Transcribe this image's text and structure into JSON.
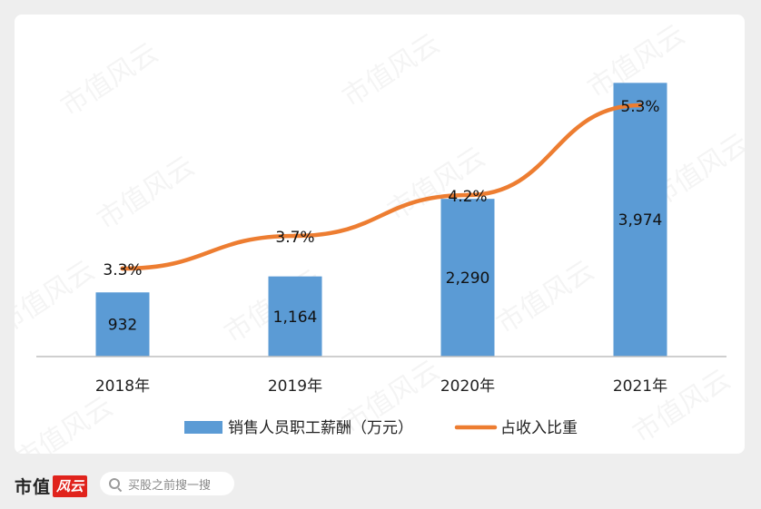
{
  "chart_data": {
    "type": "bar",
    "categories": [
      "2018年",
      "2019年",
      "2020年",
      "2021年"
    ],
    "series": [
      {
        "name": "销售人员职工薪酬（万元）",
        "type": "bar",
        "values": [
          932,
          1164,
          2290,
          3974
        ],
        "labels": [
          "932",
          "1,164",
          "2,290",
          "3,974"
        ],
        "color": "#5b9bd5"
      },
      {
        "name": "占收入比重",
        "type": "line",
        "values": [
          3.3,
          3.7,
          4.2,
          5.3
        ],
        "labels": [
          "3.3%",
          "3.7%",
          "4.2%",
          "5.3%"
        ],
        "color": "#ed7d31"
      }
    ],
    "bar_ylim": [
      0,
      4400
    ],
    "line_ylim": [
      0,
      6
    ],
    "legend_position": "bottom",
    "grid": false
  },
  "watermark": "市值风云",
  "footer": {
    "logo_main": "市值",
    "logo_accent": "风云",
    "search_placeholder": "买股之前搜一搜"
  }
}
